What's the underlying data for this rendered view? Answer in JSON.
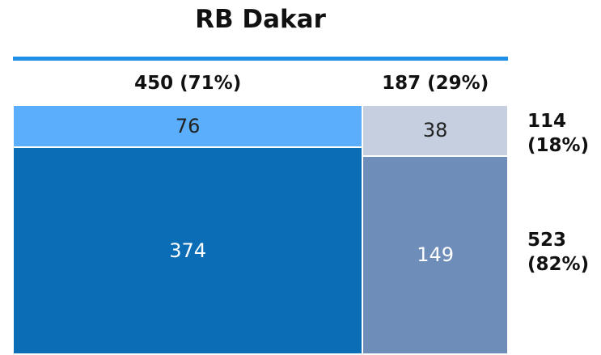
{
  "chart_data": {
    "type": "mosaic",
    "title": "RB Dakar",
    "columns": {
      "values": [
        450,
        187
      ],
      "value_labels": [
        "450 (71%)",
        "187 (29%)"
      ]
    },
    "rows": {
      "values": [
        114,
        523
      ],
      "value_labels": [
        "114 (18%)",
        "523 (82%)"
      ]
    },
    "cells": [
      [
        76,
        374
      ],
      [
        38,
        149
      ]
    ],
    "colors": [
      [
        "#5aaefc",
        "#0a6db5"
      ],
      [
        "#c5cfe0",
        "#6f8db9"
      ]
    ],
    "rule_color": "#1e90e8"
  }
}
